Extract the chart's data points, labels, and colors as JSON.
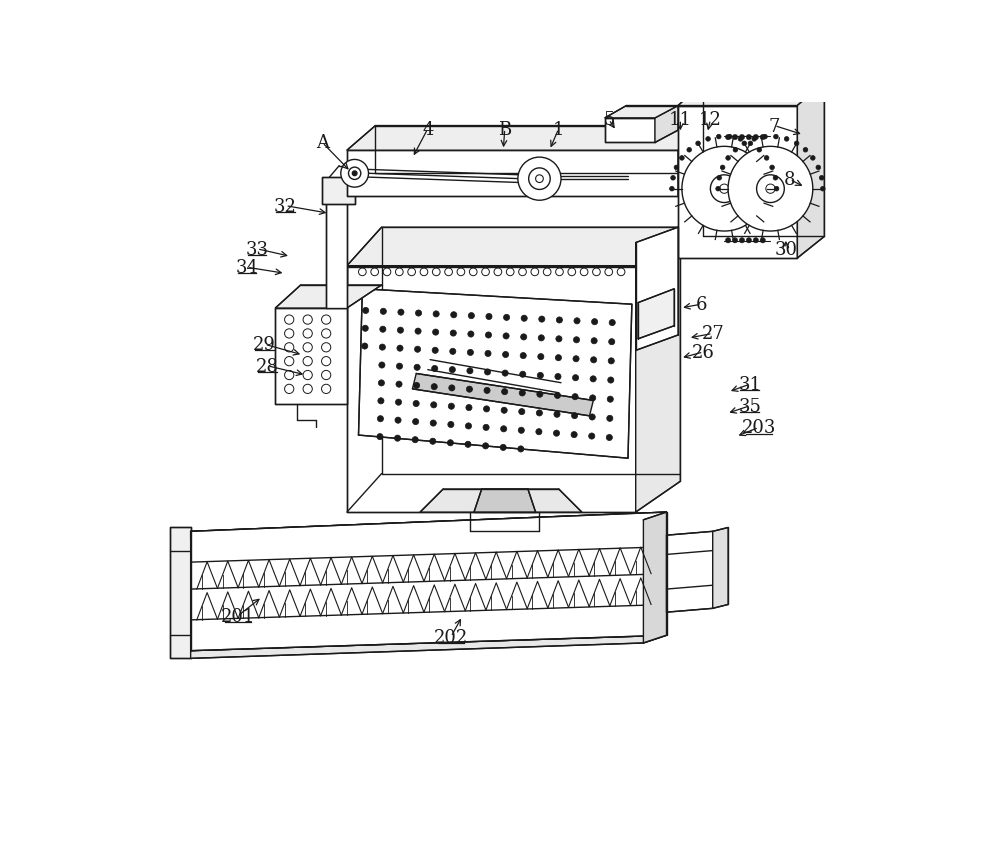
{
  "bg_color": "#ffffff",
  "lc": "#1a1a1a",
  "lw": 1.0,
  "fig_width": 10.0,
  "fig_height": 8.62
}
